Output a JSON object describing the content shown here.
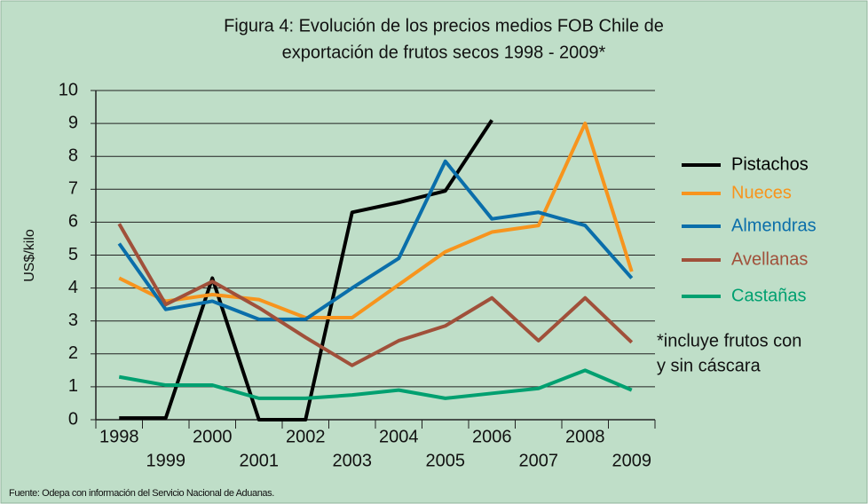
{
  "chart_data": {
    "type": "line",
    "title": [
      "Figura 4: Evolución de los precios medios FOB Chile de",
      "exportación de frutos secos 1998 - 2009*"
    ],
    "y_label": "US$/kilo",
    "categories": [
      "1998",
      "1999",
      "2000",
      "2001",
      "2002",
      "2003",
      "2004",
      "2005",
      "2006",
      "2007",
      "2008",
      "2009"
    ],
    "series": [
      {
        "name": "Pistachos",
        "color": "#000000",
        "values": [
          0.05,
          0.05,
          4.3,
          0,
          0,
          6.3,
          6.6,
          6.95,
          9.1,
          null,
          null,
          null
        ]
      },
      {
        "name": "Nueces",
        "color": "#f7941d",
        "values": [
          4.3,
          3.6,
          3.8,
          3.65,
          3.1,
          3.1,
          4.1,
          5.1,
          5.7,
          5.9,
          9.0,
          4.5
        ]
      },
      {
        "name": "Almendras",
        "color": "#0a6eaa",
        "values": [
          5.35,
          3.35,
          3.6,
          3.05,
          3.05,
          4.0,
          4.9,
          7.85,
          6.1,
          6.3,
          5.9,
          4.3
        ]
      },
      {
        "name": "Avellanas",
        "color": "#a0503a",
        "values": [
          5.95,
          3.5,
          4.2,
          3.4,
          2.5,
          1.65,
          2.4,
          2.85,
          3.7,
          2.4,
          3.7,
          2.35
        ]
      },
      {
        "name": "Castañas",
        "color": "#00a070",
        "values": [
          1.3,
          1.05,
          1.05,
          0.65,
          0.65,
          0.75,
          0.9,
          0.65,
          0.8,
          0.95,
          1.5,
          0.9
        ]
      }
    ],
    "ylim": [
      0,
      10
    ],
    "yticks": [
      0,
      1,
      2,
      3,
      4,
      5,
      6,
      7,
      8,
      9,
      10
    ],
    "grid": true,
    "note": [
      "*incluye frutos con",
      "y sin cáscara"
    ],
    "source": "Fuente: Odepa con información del Servicio Nacional de Aduanas."
  }
}
